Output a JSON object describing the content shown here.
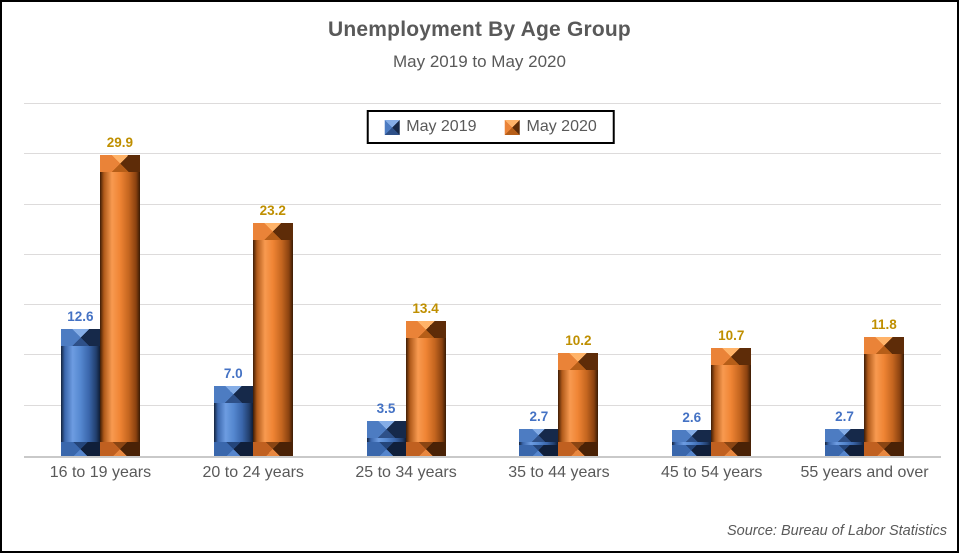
{
  "chart_data": {
    "type": "bar",
    "title": "Unemployment By Age Group",
    "subtitle": "May 2019 to May 2020",
    "categories": [
      "16 to 19 years",
      "20 to 24 years",
      "25 to 34 years",
      "35 to 44 years",
      "45 to 54 years",
      "55 years and over"
    ],
    "series": [
      {
        "name": "May 2019",
        "values": [
          12.6,
          7.0,
          3.5,
          2.7,
          2.6,
          2.7
        ],
        "color": "#4472C4",
        "label_color": "#4472C4"
      },
      {
        "name": "May 2020",
        "values": [
          29.9,
          23.2,
          13.4,
          10.2,
          10.7,
          11.8
        ],
        "color": "#ED7D31",
        "label_color": "#BF8F00"
      }
    ],
    "ylim": [
      0,
      35
    ],
    "grid_step": 5,
    "grid": true,
    "y_axis_labels_visible": false,
    "legend_position": "top-center",
    "value_label_decimals": 1,
    "source": "Source: Bureau of Labor Statistics"
  }
}
